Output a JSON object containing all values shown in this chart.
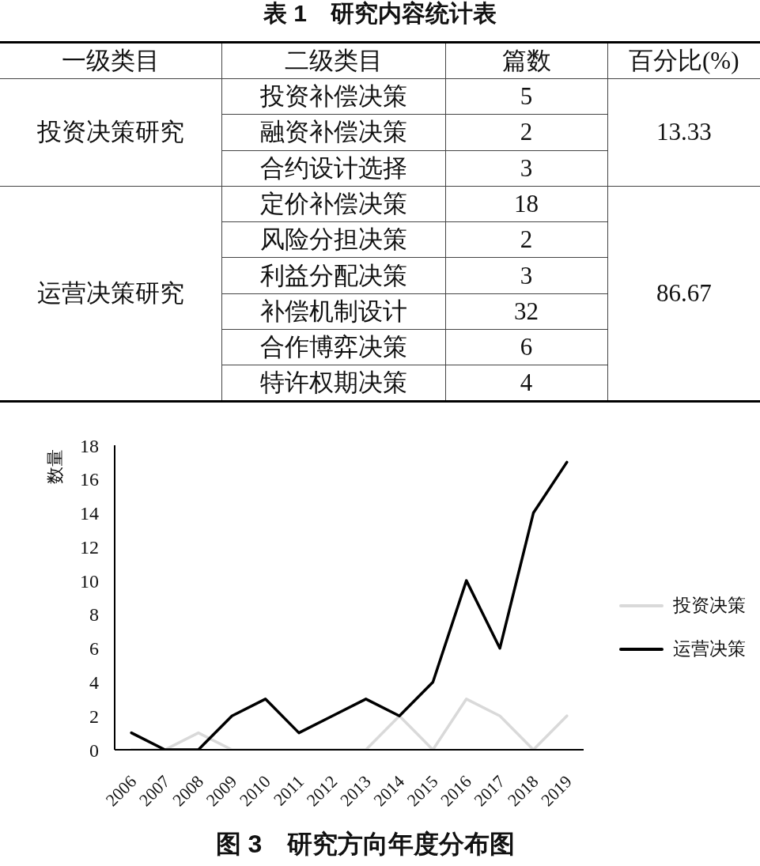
{
  "chart_data": [
    {
      "type": "other",
      "title": "表 1　研究内容统计表",
      "legend_title": "一级类目",
      "xlabel": "二级类目",
      "ylabel": "篇数",
      "y2label": "百分比(%)",
      "categories": [
        "投资补偿决策",
        "融资补偿决策",
        "合约设计选择",
        "定价补偿决策",
        "风险分担决策",
        "利益分配决策",
        "补偿机制设计",
        "合作博弈决策",
        "特许权期决策"
      ],
      "series": [
        {
          "name": "投资决策研究",
          "values": [
            5,
            2,
            3,
            null,
            null,
            null,
            null,
            null,
            null
          ]
        },
        {
          "name": "运营决策研究",
          "values": [
            null,
            null,
            null,
            18,
            2,
            3,
            32,
            6,
            4
          ]
        }
      ],
      "totals": [
        "13.33",
        "86.67"
      ],
      "data_labels": true
    },
    {
      "type": "line",
      "title": "图 3　研究方向年度分布图",
      "ylabel": "数量",
      "categories": [
        "2006",
        "2007",
        "2008",
        "2009",
        "2010",
        "2011",
        "2012",
        "2013",
        "2014",
        "2015",
        "2016",
        "2017",
        "2018",
        "2019"
      ],
      "series": [
        {
          "name": "投资决策",
          "color": "#d9d9d9",
          "values": [
            0,
            0,
            1,
            0,
            0,
            0,
            0,
            0,
            2,
            0,
            3,
            2,
            0,
            2
          ]
        },
        {
          "name": "运营决策",
          "color": "#000000",
          "values": [
            1,
            0,
            0,
            2,
            3,
            1,
            2,
            3,
            2,
            4,
            10,
            6,
            14,
            17
          ]
        }
      ],
      "ylim": [
        0,
        18
      ],
      "yticks": [
        0,
        2,
        4,
        6,
        8,
        10,
        12,
        14,
        16,
        18
      ],
      "legend": "right"
    }
  ]
}
